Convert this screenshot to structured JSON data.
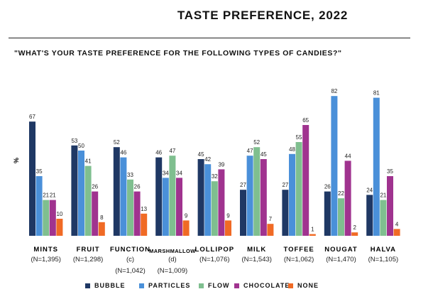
{
  "chart_data": {
    "type": "bar",
    "title": "TASTE PREFERENCE, 2022",
    "subtitle": "\"WHAT'S YOUR TASTE PREFERENCE FOR THE FOLLOWING TYPES OF CANDIES?\"",
    "ylabel": "%",
    "xlabel": "",
    "ylim": [
      0,
      90
    ],
    "categories": [
      "MINTS",
      "FRUIT",
      "FUNCTION",
      "MARSHMALLOW",
      "LOLLIPOP",
      "MILK",
      "TOFFEE",
      "NOUGAT",
      "HALVA"
    ],
    "category_sublabels": [
      "(N=1,395)",
      "(N=1,298)",
      "(c)",
      "(d)",
      "(N=1,076)",
      "(N=1,543)",
      "(N=1,062)",
      "(N=1,470)",
      "(N=1,105)"
    ],
    "category_extra_labels": [
      "",
      "",
      "(N=1,042)",
      "(N=1,009)",
      "",
      "",
      "",
      "",
      ""
    ],
    "series": [
      {
        "name": "BUBBLE",
        "color": "#1f3864",
        "values": [
          67,
          53,
          52,
          46,
          45,
          27,
          27,
          26,
          24
        ]
      },
      {
        "name": "PARTICLES",
        "color": "#4a90d9",
        "values": [
          35,
          50,
          46,
          34,
          42,
          47,
          48,
          82,
          81
        ]
      },
      {
        "name": "FLOW",
        "color": "#7fbf8f",
        "values": [
          21,
          41,
          33,
          47,
          32,
          52,
          55,
          22,
          21
        ]
      },
      {
        "name": "CHOCOLATE",
        "color": "#a0338f",
        "values": [
          21,
          26,
          26,
          34,
          39,
          45,
          65,
          44,
          35
        ]
      },
      {
        "name": "NONE",
        "color": "#f06a25",
        "values": [
          10,
          8,
          13,
          9,
          9,
          7,
          1,
          2,
          4
        ]
      }
    ],
    "grid": false,
    "legend": "bottom"
  }
}
